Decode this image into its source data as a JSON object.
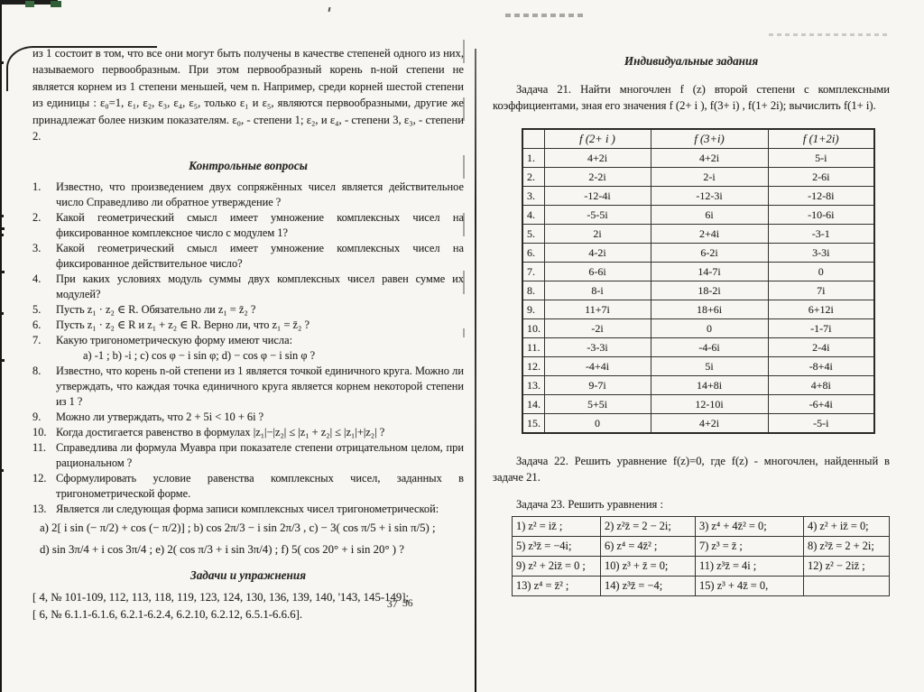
{
  "left_page": {
    "intro_paragraph": "из 1 состоит в том, что все они могут быть получены в качестве степеней одного из них, называемого первообразным. При этом первообразный корень n-ной степени не является корнем из 1 степени меньшей, чем n. Например, среди корней шестой степени из единицы : ε₀=1, ε₁, ε₂, ε₃, ε₄, ε₅, только ε₁ и ε₅, являются первообразными, другие же принадлежат более низким показателям. ε₀, - степени 1; ε₂, и ε₄, - степени 3, ε₃, - степени 2.",
    "section1_title": "Контрольные вопросы",
    "questions": [
      {
        "num": "1.",
        "text": "Известно, что произведением двух сопряжённых чисел является действительное число Справедливо ли обратное утверждение ?"
      },
      {
        "num": "2.",
        "text": "Какой геометрический смысл имеет умножение комплексных чисел на фиксированное комплексное число с модулем 1?"
      },
      {
        "num": "3.",
        "text": "Какой геометрический смысл имеет умножение комплексных чисел на фиксированное действительное число?"
      },
      {
        "num": "4.",
        "text": "При каких условиях модуль суммы двух комплексных чисел равен сумме их модулей?"
      },
      {
        "num": "5.",
        "text": "Пусть z₁ · z₂ ∈ R. Обязательно ли z₁ = z̄₂ ?"
      },
      {
        "num": "6.",
        "text": "Пусть z₁ · z₂ ∈ R и z₁ + z₂ ∈ R. Верно ли, что z₁ = z̄₂ ?"
      },
      {
        "num": "7.",
        "text": "Какую тригонометрическую форму имеют числа:",
        "subs": [
          "а) -1 ;   b) -i ;   c) cos φ − i sin φ;   d) − cos φ − i sin φ ?"
        ]
      },
      {
        "num": "8.",
        "text": "Известно, что корень n-ой степени из 1 является точкой единичного круга. Можно ли утверждать, что каждая точка единичного круга является корнем некоторой степени из 1 ?"
      },
      {
        "num": "9.",
        "text": "Можно ли утверждать, что 2 + 5i < 10 + 6i ?"
      },
      {
        "num": "10.",
        "text": "Когда достигается равенство в формулах |z₁|−|z₂| ≤ |z₁ + z₂| ≤ |z₁|+|z₂| ?"
      },
      {
        "num": "11.",
        "text": "Справедлива ли формула Муавра при показателе степени отрицательном целом, при рациональном ?"
      },
      {
        "num": "12.",
        "text": "Сформулировать условие равенства комплексных чисел, заданных в тригонометрической форме."
      },
      {
        "num": "13.",
        "text": "Является ли следующая форма записи комплексных чисел тригонометрической:",
        "subs": [
          "а)  2[ i sin (− π/2) + cos (− π/2)] ;    b)  cos 2π/3 − i sin 2π/3 ,    c)  − 3( cos π/5 + i sin π/5) ;",
          "d)  sin 3π/4 + i cos 3π/4 ;    е)  2( cos π/3 + i sin 3π/4) ;    f)  5( cos 20° + i sin 20° ) ?"
        ]
      }
    ],
    "section2_title": "Задачи и упражнения",
    "references": [
      "[ 4, № 101-109, 112, 113, 118, 119, 123, 124, 130, 136, 139, 140, '143, 145-149];",
      "[ 6, № 6.1.1-6.1.6, 6.2.1-6.2.4, 6.2.10, 6.2.12, 6.5.1-6.6.6]."
    ],
    "page_number": "36"
  },
  "right_page": {
    "title": "Индивидуальные задания",
    "task21": "Задача 21. Найти многочлен f (z) второй степени с комплексными коэффициентами, зная его значения f (2+ i ), f(3+ i) , f(1+ 2i); вычислить f(1+ i).",
    "table21": {
      "headers": [
        "",
        "f (2+ i )",
        "f (3+i)",
        "f (1+2i)"
      ],
      "rows": [
        [
          "1.",
          "4+2i",
          "4+2i",
          "5-i"
        ],
        [
          "2.",
          "2-2i",
          "2-i",
          "2-6i"
        ],
        [
          "3.",
          "-12-4i",
          "-12-3i",
          "-12-8i"
        ],
        [
          "4.",
          "-5-5i",
          "6i",
          "-10-6i"
        ],
        [
          "5.",
          "2i",
          "2+4i",
          "-3-1"
        ],
        [
          "6.",
          "4-2i",
          "6-2i",
          "3-3i"
        ],
        [
          "7.",
          "6-6i",
          "14-7i",
          "0"
        ],
        [
          "8.",
          "8-i",
          "18-2i",
          "7i"
        ],
        [
          "9.",
          "11+7i",
          "18+6i",
          "6+12i"
        ],
        [
          "10.",
          "-2i",
          "0",
          "-1-7i"
        ],
        [
          "11.",
          "-3-3i",
          "-4-6i",
          "2-4i"
        ],
        [
          "12.",
          "-4+4i",
          "5i",
          "-8+4i"
        ],
        [
          "13.",
          "9-7i",
          "14+8i",
          "4+8i"
        ],
        [
          "14.",
          "5+5i",
          "12-10i",
          "-6+4i"
        ],
        [
          "15.",
          "0",
          "4+2i",
          "-5-i"
        ]
      ]
    },
    "task22": "Задача 22. Решить уравнение f(z)=0, где f(z) - многочлен, найденный в задаче 21.",
    "task23": "Задача 23. Решить уравнения :",
    "equations": [
      [
        "1) z² = iz̄ ;",
        "2) z²z̄ = 2 − 2i;",
        "3) z⁴ + 4z̄² = 0;",
        "4) z² + iz̄ = 0;"
      ],
      [
        "5) z³z̄ = −4i;",
        "6) z⁴ = 4z̄² ;",
        "7) z³ = z̄ ;",
        "8) z²z̄ = 2 + 2i;"
      ],
      [
        "9) z² + 2iz̄ = 0 ;",
        "10) z³ + z̄ = 0;",
        "11) z³z̄ = 4i ;",
        "12) z² − 2iz̄ ;"
      ],
      [
        "13) z⁴ = z̄² ;",
        "14) z³z̄ = −4;",
        "15) z³ + 4z̄ = 0,",
        ""
      ]
    ],
    "page_number": "37"
  }
}
